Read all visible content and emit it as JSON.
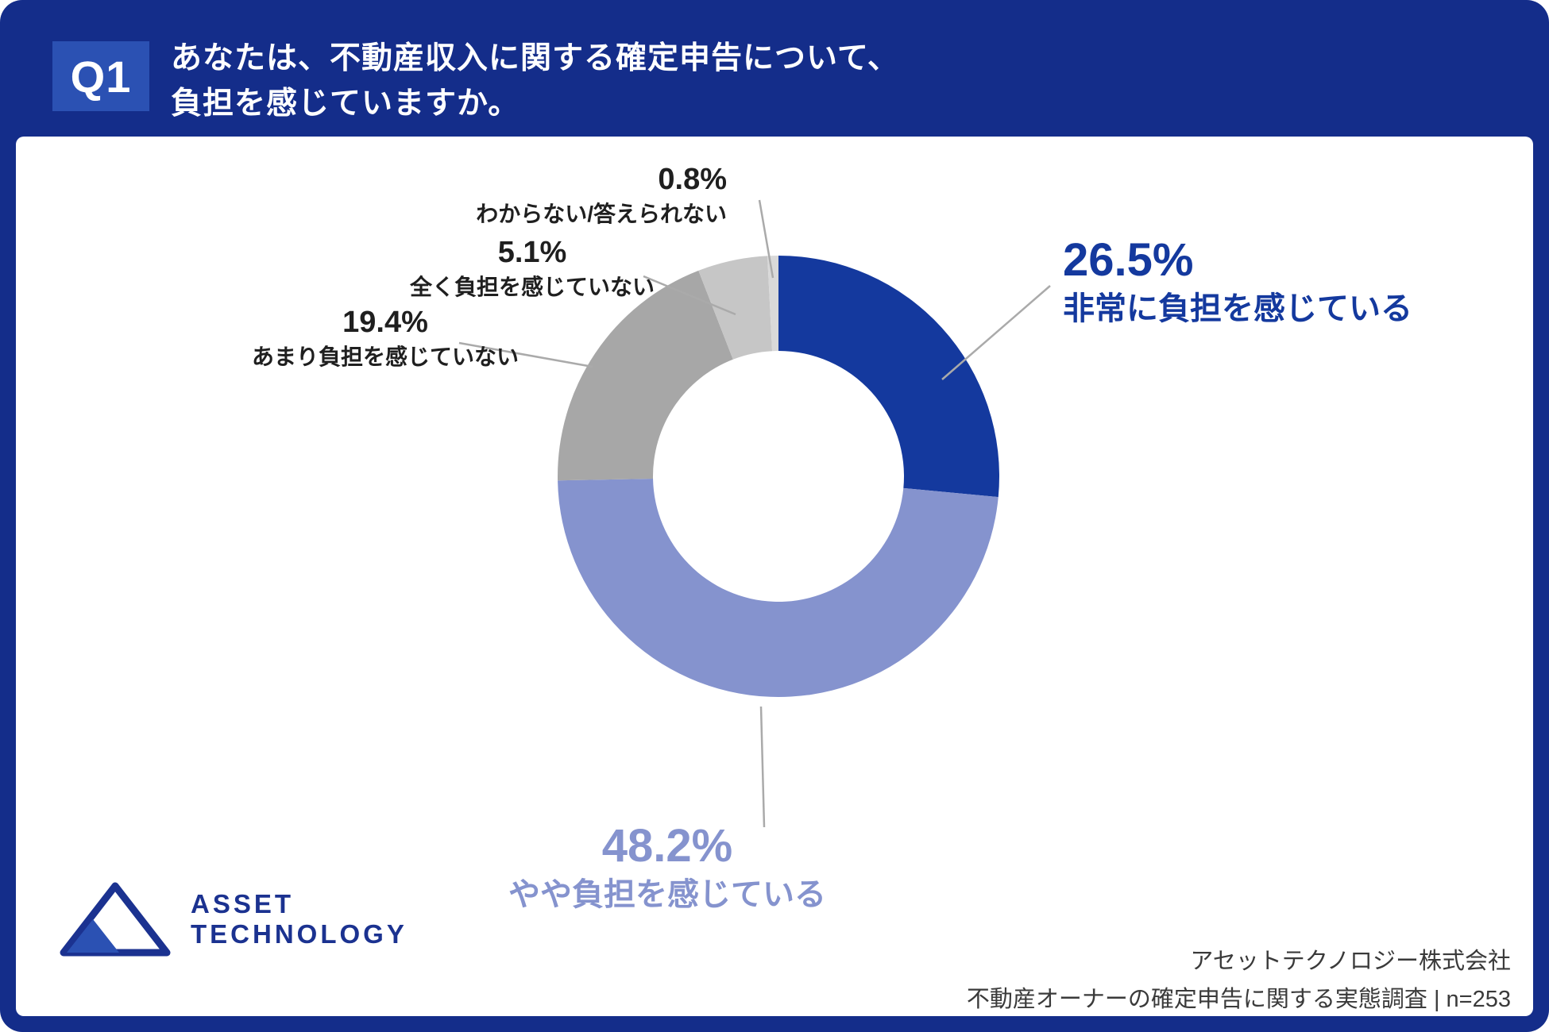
{
  "header": {
    "q_label": "Q1",
    "question_line1": "あなたは、不動産収入に関する確定申告について、",
    "question_line2": "負担を感じていますか。"
  },
  "chart_data": {
    "type": "pie",
    "donut": true,
    "title": "あなたは、不動産収入に関する確定申告について、負担を感じていますか。",
    "start_angle_deg": 0,
    "direction": "clockwise",
    "segments": [
      {
        "label": "非常に負担を感じている",
        "value": 26.5,
        "color": "#14399e"
      },
      {
        "label": "やや負担を感じている",
        "value": 48.2,
        "color": "#8593ce"
      },
      {
        "label": "あまり負担を感じていない",
        "value": 19.4,
        "color": "#a7a7a7"
      },
      {
        "label": "全く負担を感じていない",
        "value": 5.1,
        "color": "#c6c6c6"
      },
      {
        "label": "わからない/答えられない",
        "value": 0.8,
        "color": "#d9d9d9"
      }
    ],
    "n": 253
  },
  "callouts": {
    "c265": {
      "pct": "26.5%",
      "label": "非常に負担を感じている"
    },
    "c482": {
      "pct": "48.2%",
      "label": "やや負担を感じている"
    },
    "c194": {
      "pct": "19.4%",
      "label": "あまり負担を感じていない"
    },
    "c051": {
      "pct": "5.1%",
      "label": "全く負担を感じていない"
    },
    "c008": {
      "pct": "0.8%",
      "label": "わからない/答えられない"
    }
  },
  "logo": {
    "line1": "ASSET",
    "line2": "TECHNOLOGY"
  },
  "footer": {
    "company": "アセットテクノロジー株式会社",
    "survey": "不動産オーナーの確定申告に関する実態調査 | n=253"
  },
  "colors": {
    "frame": "#142d8a",
    "badge": "#2b51b3",
    "accent_dark_blue": "#14399e",
    "accent_periwinkle": "#8593ce"
  }
}
